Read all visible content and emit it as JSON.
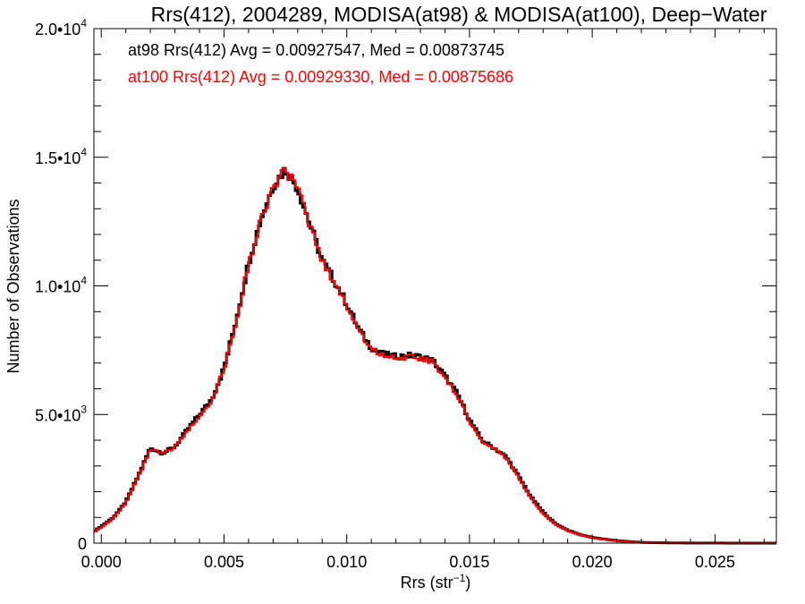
{
  "chart_data": {
    "type": "line",
    "title": "Rrs(412), 2004289, MODISA(at98) & MODISA(at100), Deep−Water",
    "xlabel": "Rrs (str",
    "xlabel_sup": "−1",
    "xlabel_suffix": ")",
    "ylabel": "Number of Observations",
    "xlim": [
      -0.0003,
      0.0275
    ],
    "ylim": [
      0,
      20000
    ],
    "x_ticks": [
      {
        "value": 0.0,
        "label": "0.000"
      },
      {
        "value": 0.005,
        "label": "0.005"
      },
      {
        "value": 0.01,
        "label": "0.010"
      },
      {
        "value": 0.015,
        "label": "0.015"
      },
      {
        "value": 0.02,
        "label": "0.020"
      },
      {
        "value": 0.025,
        "label": "0.025"
      }
    ],
    "y_ticks": [
      {
        "value": 0,
        "label": "0",
        "sup": ""
      },
      {
        "value": 5000,
        "label": "5.0•10",
        "sup": "3"
      },
      {
        "value": 10000,
        "label": "1.0•10",
        "sup": "4"
      },
      {
        "value": 15000,
        "label": "1.5•10",
        "sup": "4"
      },
      {
        "value": 20000,
        "label": "2.0•10",
        "sup": "4"
      }
    ],
    "annotations": [
      {
        "text": "at98 Rrs(412) Avg = 0.00927547, Med = 0.00873745",
        "color": "#000000"
      },
      {
        "text": "at100 Rrs(412) Avg = 0.00929330, Med = 0.00875686",
        "color": "#ff0000"
      }
    ],
    "series": [
      {
        "color": "#000000",
        "x": [
          -0.0003,
          0.0,
          0.0005,
          0.001,
          0.0015,
          0.002,
          0.0025,
          0.003,
          0.0035,
          0.004,
          0.0045,
          0.005,
          0.0055,
          0.006,
          0.0065,
          0.007,
          0.0075,
          0.008,
          0.0085,
          0.009,
          0.0095,
          0.01,
          0.0105,
          0.011,
          0.0115,
          0.012,
          0.0125,
          0.013,
          0.0135,
          0.014,
          0.0145,
          0.015,
          0.0155,
          0.016,
          0.0165,
          0.017,
          0.0175,
          0.018,
          0.0185,
          0.019,
          0.0195,
          0.02,
          0.0205,
          0.021,
          0.0215,
          0.022,
          0.023,
          0.024,
          0.025,
          0.026,
          0.027,
          0.0275
        ],
        "y": [
          450,
          650,
          1000,
          1600,
          2600,
          3700,
          3500,
          3750,
          4400,
          5000,
          5600,
          6800,
          8700,
          10900,
          12600,
          13900,
          14550,
          13800,
          12400,
          11000,
          10200,
          9300,
          8300,
          7600,
          7350,
          7250,
          7300,
          7250,
          7100,
          6500,
          5800,
          4800,
          4000,
          3700,
          3350,
          2600,
          1800,
          1200,
          750,
          500,
          330,
          220,
          150,
          100,
          60,
          30,
          12,
          5,
          3,
          1,
          0,
          0
        ]
      },
      {
        "color": "#ff0000",
        "x": [
          -0.0003,
          0.0,
          0.0005,
          0.001,
          0.0015,
          0.002,
          0.0025,
          0.003,
          0.0035,
          0.004,
          0.0045,
          0.005,
          0.0055,
          0.006,
          0.0065,
          0.007,
          0.0075,
          0.008,
          0.0085,
          0.009,
          0.0095,
          0.01,
          0.0105,
          0.011,
          0.0115,
          0.012,
          0.0125,
          0.013,
          0.0135,
          0.014,
          0.0145,
          0.015,
          0.0155,
          0.016,
          0.0165,
          0.017,
          0.0175,
          0.018,
          0.0185,
          0.019,
          0.0195,
          0.02,
          0.0205,
          0.021,
          0.0215,
          0.022,
          0.023,
          0.024,
          0.025,
          0.026,
          0.027,
          0.0275
        ],
        "y": [
          430,
          620,
          970,
          1560,
          2550,
          3650,
          3480,
          3720,
          4350,
          4950,
          5550,
          6750,
          8650,
          10850,
          12550,
          13850,
          14500,
          13750,
          12350,
          10950,
          10150,
          9250,
          8250,
          7550,
          7300,
          7200,
          7250,
          7200,
          7050,
          6450,
          5750,
          4750,
          3950,
          3650,
          3300,
          2550,
          1750,
          1150,
          720,
          480,
          320,
          210,
          140,
          95,
          55,
          28,
          10,
          4,
          2,
          1,
          0,
          0
        ]
      }
    ]
  }
}
